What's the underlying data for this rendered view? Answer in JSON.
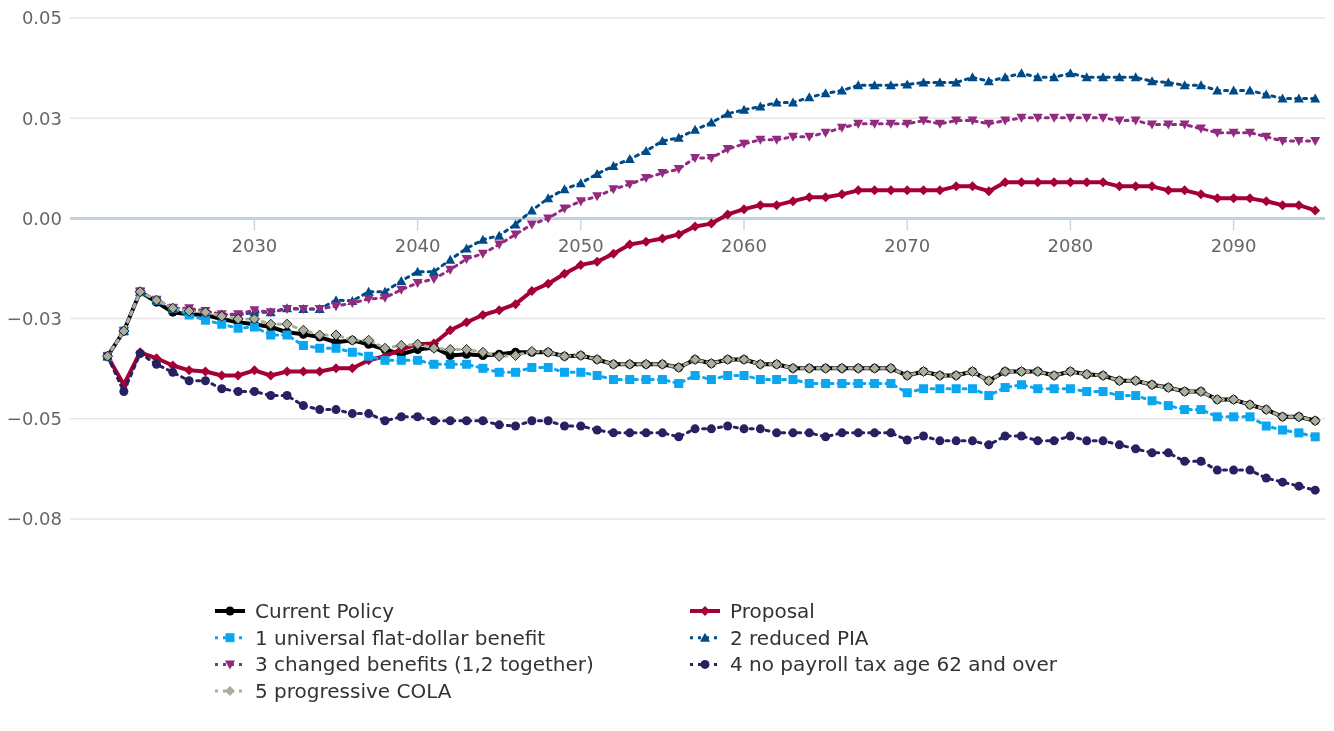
{
  "chart_data": {
    "type": "line",
    "x": [
      2021,
      2022,
      2023,
      2024,
      2025,
      2026,
      2027,
      2028,
      2029,
      2030,
      2031,
      2032,
      2033,
      2034,
      2035,
      2036,
      2037,
      2038,
      2039,
      2040,
      2041,
      2042,
      2043,
      2044,
      2045,
      2046,
      2047,
      2048,
      2049,
      2050,
      2051,
      2052,
      2053,
      2054,
      2055,
      2056,
      2057,
      2058,
      2059,
      2060,
      2061,
      2062,
      2063,
      2064,
      2065,
      2066,
      2067,
      2068,
      2069,
      2070,
      2071,
      2072,
      2073,
      2074,
      2075,
      2076,
      2077,
      2078,
      2079,
      2080,
      2081,
      2082,
      2083,
      2084,
      2085,
      2086,
      2087,
      2088,
      2089,
      2090,
      2091,
      2092,
      2093,
      2094,
      2095
    ],
    "xlim": [
      2018.7,
      2095.6
    ],
    "xticks": [
      2030,
      2040,
      2050,
      2060,
      2070,
      2080,
      2090
    ],
    "ylim": [
      -0.075,
      0.05
    ],
    "yticks": [
      0.05,
      {
        "value": 0.025,
        "label": "0.03"
      },
      {
        "value": 0,
        "label": "0.00"
      },
      {
        "value": -0.025,
        "label": "−0.03"
      },
      {
        "value": -0.05,
        "label": "−0.05"
      },
      {
        "value": -0.075,
        "label": "−0.08"
      }
    ],
    "grid": "y",
    "legend": "bottom",
    "series": [
      {
        "name": "Current Policy",
        "color": "#000000",
        "marker": "circle",
        "line_style": "solid",
        "values": [
          -0.0344,
          -0.0281,
          -0.0183,
          -0.0209,
          -0.0234,
          -0.0239,
          -0.0241,
          -0.0251,
          -0.0259,
          -0.0264,
          -0.0271,
          -0.0284,
          -0.0289,
          -0.0296,
          -0.0309,
          -0.0304,
          -0.0314,
          -0.0327,
          -0.0339,
          -0.0327,
          -0.0322,
          -0.0342,
          -0.0339,
          -0.0342,
          -0.0339,
          -0.0334,
          -0.0334,
          -0.0334,
          -0.0344,
          -0.0342,
          -0.0352,
          -0.0364,
          -0.0364,
          -0.0364,
          -0.0364,
          -0.0372,
          -0.0352,
          -0.0362,
          -0.0352,
          -0.0352,
          -0.0364,
          -0.0364,
          -0.0374,
          -0.0374,
          -0.0374,
          -0.0374,
          -0.0374,
          -0.0374,
          -0.0374,
          -0.0392,
          -0.0382,
          -0.0392,
          -0.0392,
          -0.0382,
          -0.0405,
          -0.0382,
          -0.0382,
          -0.0382,
          -0.0392,
          -0.0382,
          -0.0389,
          -0.0392,
          -0.0405,
          -0.0405,
          -0.0415,
          -0.0422,
          -0.0432,
          -0.0432,
          -0.0452,
          -0.0452,
          -0.0465,
          -0.0477,
          -0.0495,
          -0.0495,
          -0.0505
        ]
      },
      {
        "name": "Proposal",
        "color": "#a50034",
        "marker": "diamond",
        "line_style": "solid",
        "values": [
          -0.0344,
          -0.0415,
          -0.0334,
          -0.0349,
          -0.0367,
          -0.0379,
          -0.0382,
          -0.0392,
          -0.0392,
          -0.0379,
          -0.0392,
          -0.0382,
          -0.0382,
          -0.0382,
          -0.0374,
          -0.0374,
          -0.0354,
          -0.0344,
          -0.0327,
          -0.0314,
          -0.0312,
          -0.0279,
          -0.0259,
          -0.0241,
          -0.0229,
          -0.0214,
          -0.0181,
          -0.0163,
          -0.0138,
          -0.0116,
          -0.0108,
          -0.0088,
          -0.0065,
          -0.0058,
          -0.005,
          -0.004,
          -0.002,
          -0.0013,
          0.001,
          0.0023,
          0.0033,
          0.0033,
          0.0043,
          0.0053,
          0.0053,
          0.006,
          0.007,
          0.007,
          0.007,
          0.007,
          0.007,
          0.007,
          0.008,
          0.008,
          0.0068,
          0.009,
          0.009,
          0.009,
          0.009,
          0.009,
          0.009,
          0.009,
          0.008,
          0.008,
          0.008,
          0.007,
          0.007,
          0.006,
          0.005,
          0.005,
          0.005,
          0.0043,
          0.0033,
          0.0033,
          0.002
        ]
      },
      {
        "name": "1 universal flat-dollar benefit",
        "color": "#0aa6f0",
        "marker": "square",
        "line_style": "dotted",
        "values": [
          -0.0344,
          -0.0281,
          -0.0183,
          -0.0204,
          -0.0224,
          -0.0241,
          -0.0254,
          -0.0264,
          -0.0274,
          -0.0271,
          -0.0291,
          -0.0291,
          -0.0317,
          -0.0324,
          -0.0324,
          -0.0334,
          -0.0344,
          -0.0354,
          -0.0354,
          -0.0354,
          -0.0364,
          -0.0364,
          -0.0364,
          -0.0374,
          -0.0384,
          -0.0384,
          -0.0372,
          -0.0372,
          -0.0384,
          -0.0384,
          -0.0392,
          -0.0402,
          -0.0402,
          -0.0402,
          -0.0402,
          -0.0412,
          -0.0392,
          -0.0402,
          -0.0392,
          -0.0392,
          -0.0402,
          -0.0402,
          -0.0402,
          -0.0412,
          -0.0412,
          -0.0412,
          -0.0412,
          -0.0412,
          -0.0412,
          -0.0435,
          -0.0425,
          -0.0425,
          -0.0425,
          -0.0425,
          -0.0442,
          -0.0422,
          -0.0415,
          -0.0425,
          -0.0425,
          -0.0425,
          -0.0432,
          -0.0432,
          -0.0442,
          -0.0442,
          -0.0455,
          -0.0467,
          -0.0477,
          -0.0477,
          -0.0495,
          -0.0495,
          -0.0495,
          -0.0518,
          -0.0528,
          -0.0535,
          -0.0545
        ]
      },
      {
        "name": "2 reduced PIA",
        "color": "#004b87",
        "marker": "triangle",
        "line_style": "dotted",
        "values": [
          -0.0344,
          -0.0281,
          -0.0183,
          -0.0204,
          -0.0224,
          -0.0229,
          -0.0234,
          -0.0239,
          -0.0241,
          -0.0234,
          -0.0234,
          -0.0224,
          -0.0226,
          -0.0226,
          -0.0204,
          -0.0206,
          -0.0183,
          -0.0183,
          -0.0156,
          -0.0133,
          -0.0133,
          -0.0103,
          -0.0075,
          -0.0053,
          -0.0043,
          -0.0015,
          0.002,
          0.005,
          0.0073,
          0.0088,
          0.0111,
          0.0131,
          0.0148,
          0.0168,
          0.0193,
          0.0201,
          0.0221,
          0.0239,
          0.0261,
          0.0271,
          0.0279,
          0.0289,
          0.0289,
          0.0302,
          0.0312,
          0.0319,
          0.0332,
          0.0332,
          0.0332,
          0.0334,
          0.0339,
          0.0339,
          0.0339,
          0.0352,
          0.0342,
          0.0352,
          0.0362,
          0.0352,
          0.0352,
          0.0362,
          0.0352,
          0.0352,
          0.0352,
          0.0352,
          0.0342,
          0.0339,
          0.0332,
          0.0332,
          0.0319,
          0.0319,
          0.0319,
          0.0309,
          0.0299,
          0.0299,
          0.0299
        ]
      },
      {
        "name": "3 changed benefits (1,2 together)",
        "color": "#922b7f",
        "marker": "triangle-down",
        "line_style": "dotted",
        "values": [
          -0.0344,
          -0.0281,
          -0.0183,
          -0.0204,
          -0.0224,
          -0.0224,
          -0.0231,
          -0.0239,
          -0.0239,
          -0.0229,
          -0.0234,
          -0.0226,
          -0.0226,
          -0.0226,
          -0.0219,
          -0.0211,
          -0.0201,
          -0.0198,
          -0.0178,
          -0.0161,
          -0.0151,
          -0.0128,
          -0.0101,
          -0.0088,
          -0.0065,
          -0.004,
          -0.0015,
          0,
          0.0025,
          0.0043,
          0.0055,
          0.0073,
          0.0085,
          0.0101,
          0.0113,
          0.0123,
          0.0151,
          0.0151,
          0.0173,
          0.0186,
          0.0196,
          0.0196,
          0.0204,
          0.0204,
          0.0214,
          0.0226,
          0.0236,
          0.0236,
          0.0236,
          0.0236,
          0.0244,
          0.0236,
          0.0244,
          0.0244,
          0.0236,
          0.0244,
          0.0251,
          0.0251,
          0.0251,
          0.0251,
          0.0251,
          0.0251,
          0.0244,
          0.0244,
          0.0234,
          0.0234,
          0.0234,
          0.0224,
          0.0214,
          0.0214,
          0.0214,
          0.0204,
          0.0193,
          0.0193,
          0.0193
        ]
      },
      {
        "name": "4 no payroll tax age 62 and over",
        "color": "#262261",
        "marker": "circle",
        "line_style": "dotted",
        "values": [
          -0.0344,
          -0.0432,
          -0.0337,
          -0.0364,
          -0.0384,
          -0.0405,
          -0.0405,
          -0.0425,
          -0.0432,
          -0.0432,
          -0.0442,
          -0.0442,
          -0.0467,
          -0.0477,
          -0.0477,
          -0.0487,
          -0.0487,
          -0.0505,
          -0.0495,
          -0.0495,
          -0.0505,
          -0.0505,
          -0.0505,
          -0.0505,
          -0.0515,
          -0.0518,
          -0.0505,
          -0.0505,
          -0.0518,
          -0.0518,
          -0.0528,
          -0.0535,
          -0.0535,
          -0.0535,
          -0.0535,
          -0.0545,
          -0.0525,
          -0.0525,
          -0.0518,
          -0.0525,
          -0.0525,
          -0.0535,
          -0.0535,
          -0.0535,
          -0.0545,
          -0.0535,
          -0.0535,
          -0.0535,
          -0.0535,
          -0.0553,
          -0.0543,
          -0.0555,
          -0.0555,
          -0.0555,
          -0.0565,
          -0.0543,
          -0.0543,
          -0.0555,
          -0.0555,
          -0.0543,
          -0.0555,
          -0.0555,
          -0.0565,
          -0.0575,
          -0.0585,
          -0.0585,
          -0.0606,
          -0.0606,
          -0.0628,
          -0.0628,
          -0.0628,
          -0.0648,
          -0.0658,
          -0.0668,
          -0.0678
        ]
      },
      {
        "name": "5 progressive COLA",
        "color": "#aaaf9c",
        "marker": "diamond",
        "line_style": "dotted",
        "values": [
          -0.0344,
          -0.0281,
          -0.0183,
          -0.0204,
          -0.0224,
          -0.0231,
          -0.0234,
          -0.0244,
          -0.0251,
          -0.0251,
          -0.0264,
          -0.0264,
          -0.0279,
          -0.0291,
          -0.0291,
          -0.0304,
          -0.0304,
          -0.0324,
          -0.0317,
          -0.0314,
          -0.0324,
          -0.0327,
          -0.0327,
          -0.0334,
          -0.0344,
          -0.0342,
          -0.0332,
          -0.0334,
          -0.0344,
          -0.0342,
          -0.0352,
          -0.0364,
          -0.0364,
          -0.0364,
          -0.0364,
          -0.0372,
          -0.0352,
          -0.0362,
          -0.0352,
          -0.0352,
          -0.0364,
          -0.0364,
          -0.0374,
          -0.0374,
          -0.0374,
          -0.0374,
          -0.0374,
          -0.0374,
          -0.0374,
          -0.0392,
          -0.0382,
          -0.0392,
          -0.0392,
          -0.0382,
          -0.0405,
          -0.0382,
          -0.0382,
          -0.0382,
          -0.0392,
          -0.0382,
          -0.0389,
          -0.0392,
          -0.0405,
          -0.0405,
          -0.0415,
          -0.0422,
          -0.0432,
          -0.0432,
          -0.0452,
          -0.0452,
          -0.0465,
          -0.0477,
          -0.0495,
          -0.0495,
          -0.0505
        ]
      }
    ]
  }
}
